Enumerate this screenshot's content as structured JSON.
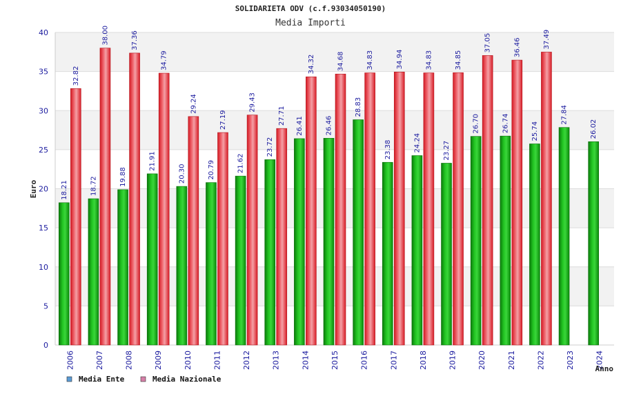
{
  "chart_data": {
    "type": "bar",
    "title": "SOLIDARIETA ODV (c.f.93034050190)",
    "subtitle": "Media Importi",
    "xlabel": "Anno",
    "ylabel": "Euro",
    "ylim": [
      0,
      40
    ],
    "yticks": [
      0,
      5,
      10,
      15,
      20,
      25,
      30,
      35,
      40
    ],
    "grid": true,
    "legend_position": "bottom-left",
    "categories": [
      "2006",
      "2007",
      "2008",
      "2009",
      "2010",
      "2011",
      "2012",
      "2013",
      "2014",
      "2015",
      "2016",
      "2017",
      "2018",
      "2019",
      "2020",
      "2021",
      "2022",
      "2023",
      "2024"
    ],
    "series": [
      {
        "name": "Media Ente",
        "color": "#18b818",
        "legend_color": "#5b9bd5",
        "values": [
          18.21,
          18.72,
          19.88,
          21.91,
          20.3,
          20.79,
          21.62,
          23.72,
          26.41,
          26.46,
          28.83,
          23.38,
          24.24,
          23.27,
          26.7,
          26.74,
          25.74,
          27.84,
          26.02
        ],
        "labels": [
          "18.21",
          "18.72",
          "19.88",
          "21.91",
          "20.30",
          "20.79",
          "21.62",
          "23.72",
          "26.41",
          "26.46",
          "28.83",
          "23.38",
          "24.24",
          "23.27",
          "26.70",
          "26.74",
          "25.74",
          "27.84",
          "26.02"
        ]
      },
      {
        "name": "Media Nazionale",
        "color": "#e8343c",
        "legend_color": "#d67fa8",
        "values": [
          32.82,
          38.0,
          37.36,
          34.79,
          29.24,
          27.19,
          29.43,
          27.71,
          34.32,
          34.68,
          34.83,
          34.94,
          34.83,
          34.85,
          37.05,
          36.46,
          37.49,
          null,
          null
        ],
        "labels": [
          "32.82",
          "38.00",
          "37.36",
          "34.79",
          "29.24",
          "27.19",
          "29.43",
          "27.71",
          "34.32",
          "34.68",
          "34.83",
          "34.94",
          "34.83",
          "34.85",
          "37.05",
          "36.46",
          "37.49",
          "",
          ""
        ]
      }
    ]
  }
}
